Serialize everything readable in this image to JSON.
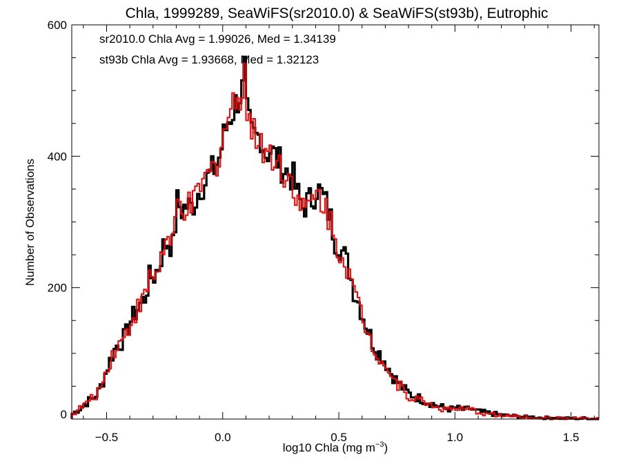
{
  "chart_data": {
    "type": "histogram-step",
    "title": "Chla, 1999289, SeaWiFS(sr2010.0) & SeaWiFS(st93b), Eutrophic",
    "xlabel_prefix": "log10 Chla (mg m",
    "xlabel_sup": "−3",
    "xlabel_suffix": ")",
    "ylabel": "Number of Observations",
    "xlim": [
      -0.65,
      1.62
    ],
    "ylim": [
      0,
      600
    ],
    "x_ticks": [
      {
        "value": -0.5,
        "label": "−0.5"
      },
      {
        "value": 0.0,
        "label": "0.0"
      },
      {
        "value": 0.5,
        "label": "0.5"
      },
      {
        "value": 1.0,
        "label": "1.0"
      },
      {
        "value": 1.5,
        "label": "1.5"
      }
    ],
    "y_ticks": [
      {
        "value": 0,
        "label": "0"
      },
      {
        "value": 200,
        "label": "200"
      },
      {
        "value": 400,
        "label": "400"
      },
      {
        "value": 600,
        "label": "600"
      }
    ],
    "annotations": [
      {
        "text": "sr2010.0 Chla Avg = 1.99026, Med = 1.34139",
        "color": "#000000"
      },
      {
        "text": "st93b Chla Avg = 1.93668, Med = 1.32123",
        "color": "#ff0000"
      }
    ],
    "bin_width": 0.01,
    "series": [
      {
        "name": "sr2010.0",
        "color": "#000000",
        "points": [
          [
            -0.65,
            8
          ],
          [
            -0.62,
            16
          ],
          [
            -0.6,
            22
          ],
          [
            -0.58,
            28
          ],
          [
            -0.56,
            32
          ],
          [
            -0.54,
            42
          ],
          [
            -0.52,
            58
          ],
          [
            -0.5,
            80
          ],
          [
            -0.48,
            98
          ],
          [
            -0.46,
            112
          ],
          [
            -0.44,
            118
          ],
          [
            -0.42,
            130
          ],
          [
            -0.4,
            150
          ],
          [
            -0.38,
            162
          ],
          [
            -0.36,
            175
          ],
          [
            -0.34,
            185
          ],
          [
            -0.32,
            215
          ],
          [
            -0.3,
            218
          ],
          [
            -0.28,
            232
          ],
          [
            -0.26,
            262
          ],
          [
            -0.24,
            270
          ],
          [
            -0.22,
            262
          ],
          [
            -0.2,
            330
          ],
          [
            -0.18,
            318
          ],
          [
            -0.16,
            325
          ],
          [
            -0.14,
            322
          ],
          [
            -0.12,
            335
          ],
          [
            -0.1,
            355
          ],
          [
            -0.08,
            360
          ],
          [
            -0.06,
            372
          ],
          [
            -0.04,
            382
          ],
          [
            -0.02,
            398
          ],
          [
            0.0,
            430
          ],
          [
            0.02,
            455
          ],
          [
            0.04,
            470
          ],
          [
            0.06,
            488
          ],
          [
            0.08,
            500
          ],
          [
            0.09,
            530
          ],
          [
            0.1,
            462
          ],
          [
            0.12,
            432
          ],
          [
            0.14,
            428
          ],
          [
            0.16,
            432
          ],
          [
            0.18,
            405
          ],
          [
            0.2,
            410
          ],
          [
            0.22,
            400
          ],
          [
            0.24,
            390
          ],
          [
            0.26,
            380
          ],
          [
            0.28,
            374
          ],
          [
            0.3,
            366
          ],
          [
            0.32,
            340
          ],
          [
            0.34,
            322
          ],
          [
            0.36,
            330
          ],
          [
            0.38,
            335
          ],
          [
            0.4,
            352
          ],
          [
            0.42,
            342
          ],
          [
            0.44,
            328
          ],
          [
            0.46,
            304
          ],
          [
            0.48,
            272
          ],
          [
            0.5,
            262
          ],
          [
            0.52,
            248
          ],
          [
            0.54,
            228
          ],
          [
            0.56,
            196
          ],
          [
            0.58,
            178
          ],
          [
            0.6,
            156
          ],
          [
            0.62,
            136
          ],
          [
            0.64,
            118
          ],
          [
            0.66,
            104
          ],
          [
            0.68,
            96
          ],
          [
            0.7,
            84
          ],
          [
            0.72,
            70
          ],
          [
            0.74,
            60
          ],
          [
            0.76,
            52
          ],
          [
            0.78,
            44
          ],
          [
            0.8,
            38
          ],
          [
            0.82,
            35
          ],
          [
            0.84,
            32
          ],
          [
            0.86,
            29
          ],
          [
            0.88,
            26
          ],
          [
            0.9,
            23
          ],
          [
            0.92,
            20
          ],
          [
            0.94,
            18
          ],
          [
            0.96,
            16
          ],
          [
            0.98,
            15
          ],
          [
            1.0,
            17
          ],
          [
            1.02,
            15
          ],
          [
            1.04,
            14
          ],
          [
            1.06,
            16
          ],
          [
            1.08,
            13
          ],
          [
            1.1,
            11
          ],
          [
            1.12,
            10
          ],
          [
            1.14,
            9
          ],
          [
            1.16,
            8
          ],
          [
            1.18,
            7
          ],
          [
            1.2,
            6
          ],
          [
            1.22,
            5
          ],
          [
            1.24,
            5
          ],
          [
            1.26,
            4
          ],
          [
            1.28,
            4
          ],
          [
            1.3,
            3
          ],
          [
            1.32,
            3
          ],
          [
            1.34,
            3
          ],
          [
            1.36,
            2
          ],
          [
            1.38,
            2
          ],
          [
            1.4,
            2
          ],
          [
            1.42,
            2
          ],
          [
            1.44,
            2
          ],
          [
            1.46,
            1
          ],
          [
            1.48,
            1
          ],
          [
            1.5,
            1
          ],
          [
            1.52,
            1
          ],
          [
            1.54,
            1
          ],
          [
            1.56,
            1
          ],
          [
            1.58,
            1
          ],
          [
            1.6,
            0
          ],
          [
            1.62,
            0
          ]
        ]
      },
      {
        "name": "st93b",
        "color": "#ff0000",
        "points": [
          [
            -0.65,
            8
          ],
          [
            -0.62,
            16
          ],
          [
            -0.6,
            22
          ],
          [
            -0.58,
            28
          ],
          [
            -0.56,
            32
          ],
          [
            -0.54,
            42
          ],
          [
            -0.52,
            58
          ],
          [
            -0.5,
            80
          ],
          [
            -0.48,
            98
          ],
          [
            -0.46,
            112
          ],
          [
            -0.44,
            118
          ],
          [
            -0.42,
            130
          ],
          [
            -0.4,
            150
          ],
          [
            -0.38,
            162
          ],
          [
            -0.36,
            175
          ],
          [
            -0.34,
            185
          ],
          [
            -0.32,
            215
          ],
          [
            -0.3,
            218
          ],
          [
            -0.28,
            232
          ],
          [
            -0.26,
            262
          ],
          [
            -0.24,
            270
          ],
          [
            -0.22,
            262
          ],
          [
            -0.2,
            328
          ],
          [
            -0.18,
            316
          ],
          [
            -0.16,
            324
          ],
          [
            -0.14,
            320
          ],
          [
            -0.12,
            334
          ],
          [
            -0.1,
            356
          ],
          [
            -0.08,
            362
          ],
          [
            -0.06,
            374
          ],
          [
            -0.04,
            384
          ],
          [
            -0.02,
            402
          ],
          [
            0.0,
            436
          ],
          [
            0.02,
            460
          ],
          [
            0.04,
            476
          ],
          [
            0.06,
            494
          ],
          [
            0.08,
            505
          ],
          [
            0.09,
            540
          ],
          [
            0.1,
            470
          ],
          [
            0.12,
            436
          ],
          [
            0.14,
            430
          ],
          [
            0.16,
            430
          ],
          [
            0.18,
            402
          ],
          [
            0.2,
            408
          ],
          [
            0.22,
            396
          ],
          [
            0.24,
            386
          ],
          [
            0.26,
            376
          ],
          [
            0.28,
            368
          ],
          [
            0.3,
            360
          ],
          [
            0.32,
            334
          ],
          [
            0.34,
            316
          ],
          [
            0.36,
            324
          ],
          [
            0.38,
            328
          ],
          [
            0.4,
            344
          ],
          [
            0.42,
            334
          ],
          [
            0.44,
            322
          ],
          [
            0.46,
            298
          ],
          [
            0.48,
            268
          ],
          [
            0.5,
            258
          ],
          [
            0.52,
            244
          ],
          [
            0.54,
            224
          ],
          [
            0.56,
            192
          ],
          [
            0.58,
            174
          ],
          [
            0.6,
            152
          ],
          [
            0.62,
            132
          ],
          [
            0.64,
            114
          ],
          [
            0.66,
            100
          ],
          [
            0.68,
            92
          ],
          [
            0.7,
            80
          ],
          [
            0.72,
            66
          ],
          [
            0.74,
            56
          ],
          [
            0.76,
            49
          ],
          [
            0.78,
            41
          ],
          [
            0.8,
            35
          ],
          [
            0.82,
            32
          ],
          [
            0.84,
            29
          ],
          [
            0.86,
            27
          ],
          [
            0.88,
            24
          ],
          [
            0.9,
            21
          ],
          [
            0.92,
            18
          ],
          [
            0.94,
            16
          ],
          [
            0.96,
            15
          ],
          [
            0.98,
            14
          ],
          [
            1.0,
            16
          ],
          [
            1.02,
            14
          ],
          [
            1.04,
            13
          ],
          [
            1.06,
            15
          ],
          [
            1.08,
            12
          ],
          [
            1.1,
            10
          ],
          [
            1.12,
            9
          ],
          [
            1.14,
            8
          ],
          [
            1.16,
            7
          ],
          [
            1.18,
            6
          ],
          [
            1.2,
            5
          ],
          [
            1.22,
            5
          ],
          [
            1.24,
            4
          ],
          [
            1.26,
            4
          ],
          [
            1.28,
            3
          ],
          [
            1.3,
            3
          ],
          [
            1.32,
            2
          ],
          [
            1.34,
            2
          ],
          [
            1.36,
            2
          ],
          [
            1.38,
            2
          ],
          [
            1.4,
            2
          ],
          [
            1.42,
            1
          ],
          [
            1.44,
            1
          ],
          [
            1.46,
            1
          ],
          [
            1.48,
            1
          ],
          [
            1.5,
            1
          ],
          [
            1.52,
            1
          ],
          [
            1.54,
            1
          ],
          [
            1.56,
            1
          ],
          [
            1.58,
            0
          ],
          [
            1.6,
            0
          ],
          [
            1.62,
            0
          ]
        ]
      }
    ]
  }
}
